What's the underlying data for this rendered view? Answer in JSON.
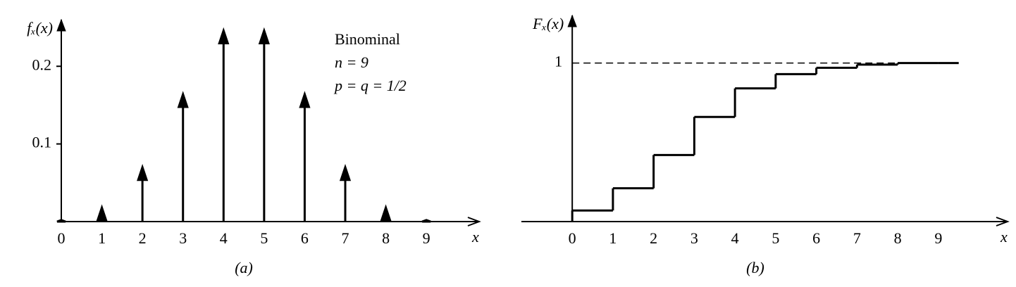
{
  "chart_data": [
    {
      "type": "stem",
      "ylabel": "fₓ(x)",
      "xlabel": "x",
      "caption": "(a)",
      "annotation": [
        "Binominal",
        "n = 9",
        "p = q = 1/2"
      ],
      "x": [
        0,
        1,
        2,
        3,
        4,
        5,
        6,
        7,
        8,
        9
      ],
      "values": [
        0.002,
        0.018,
        0.07,
        0.164,
        0.246,
        0.246,
        0.164,
        0.07,
        0.018,
        0.002
      ],
      "xlim": [
        0,
        10.3
      ],
      "ylim": [
        0,
        0.26
      ],
      "xticks": [
        0,
        1,
        2,
        3,
        4,
        5,
        6,
        7,
        8,
        9
      ],
      "yticks": [
        0.1,
        0.2
      ],
      "color": "#000000"
    },
    {
      "type": "step",
      "ylabel": "Fₓ(x)",
      "xlabel": "x",
      "caption": "(b)",
      "x": [
        0,
        1,
        2,
        3,
        4,
        5,
        6,
        7,
        8,
        9
      ],
      "values": [
        0.07,
        0.21,
        0.42,
        0.66,
        0.84,
        0.93,
        0.97,
        0.99,
        1,
        1
      ],
      "xlim": [
        -1.25,
        10.7
      ],
      "ylim": [
        0,
        1.3
      ],
      "xticks": [
        0,
        1,
        2,
        3,
        4,
        5,
        6,
        7,
        8,
        9
      ],
      "yticks": [
        1
      ],
      "grid": "dashed",
      "color": "#000000"
    }
  ]
}
